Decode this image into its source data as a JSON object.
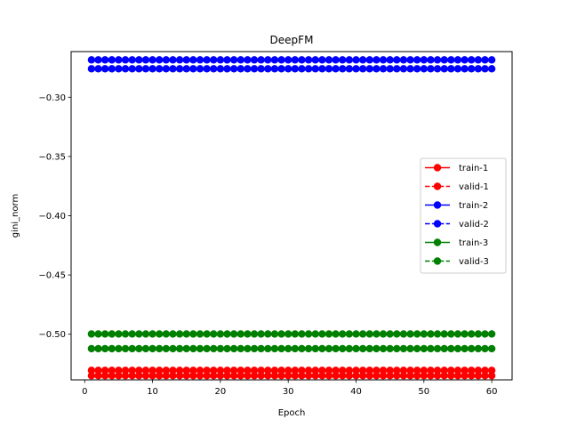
{
  "chart_data": {
    "type": "line",
    "title": "DeepFM",
    "xlabel": "Epoch",
    "ylabel": "gini_norm",
    "xlim": [
      -2,
      63
    ],
    "ylim": [
      -0.5385,
      -0.2615
    ],
    "xticks": [
      0,
      10,
      20,
      30,
      40,
      50,
      60
    ],
    "xtick_labels": [
      "0",
      "10",
      "20",
      "30",
      "40",
      "50",
      "60"
    ],
    "yticks": [
      -0.3,
      -0.35,
      -0.4,
      -0.45,
      -0.5
    ],
    "ytick_labels": [
      "−0.30",
      "−0.35",
      "−0.40",
      "−0.45",
      "−0.50"
    ],
    "grid": false,
    "legend_position": "center-right",
    "epochs": {
      "start": 1,
      "end": 60
    },
    "series": [
      {
        "name": "train-1",
        "color": "#ff0000",
        "linestyle": "solid",
        "marker": "circle",
        "constant_value": -0.5305
      },
      {
        "name": "valid-1",
        "color": "#ff0000",
        "linestyle": "dashed",
        "marker": "circle",
        "constant_value": -0.535
      },
      {
        "name": "train-2",
        "color": "#0000ff",
        "linestyle": "solid",
        "marker": "circle",
        "constant_value": -0.2685
      },
      {
        "name": "valid-2",
        "color": "#0000ff",
        "linestyle": "dashed",
        "marker": "circle",
        "constant_value": -0.276
      },
      {
        "name": "train-3",
        "color": "#008000",
        "linestyle": "solid",
        "marker": "circle",
        "constant_value": -0.4998
      },
      {
        "name": "valid-3",
        "color": "#008000",
        "linestyle": "dashed",
        "marker": "circle",
        "constant_value": -0.5122
      }
    ]
  }
}
